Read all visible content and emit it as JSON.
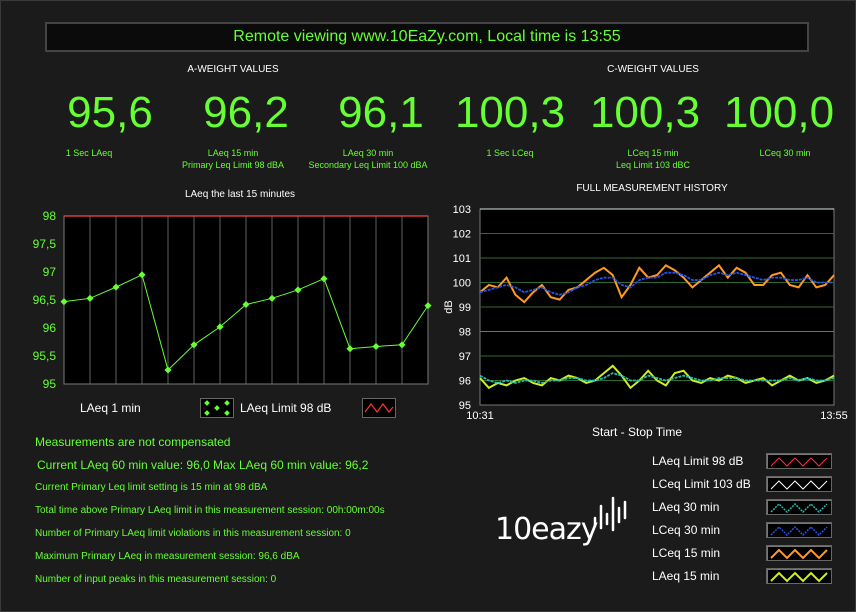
{
  "banner": "Remote viewing www.10EaZy.com, Local time is 13:55",
  "a_header": "A-WEIGHT VALUES",
  "c_header": "C-WEIGHT VALUES",
  "readouts": [
    {
      "value": "95,6",
      "cap1": "1 Sec LAeq",
      "cap2": ""
    },
    {
      "value": "96,2",
      "cap1": "LAeq 15 min",
      "cap2": "Primary Leq Limit 98 dBA"
    },
    {
      "value": "96,1",
      "cap1": "LAeq 30 min",
      "cap2": "Secondary Leq Limit 100 dBA"
    },
    {
      "value": "100,3",
      "cap1": "1 Sec LCeq",
      "cap2": ""
    },
    {
      "value": "100,3",
      "cap1": "LCeq 15 min",
      "cap2": "Leq Limit 103 dBC"
    },
    {
      "value": "100,0",
      "cap1": "LCeq 30 min",
      "cap2": ""
    }
  ],
  "left_chart_title": "LAeq the last 15 minutes",
  "right_chart_title": "FULL MEASUREMENT HISTORY",
  "left_legend": {
    "series_label": "LAeq 1 min",
    "limit_label": "LAeq Limit 98 dB"
  },
  "right_axis": {
    "ylabel": "dB",
    "x_start": "10:31",
    "x_end": "13:55",
    "xlabel": "Start - Stop Time"
  },
  "info": {
    "compensation": "Measurements are not compensated",
    "current_60": "Current LAeq 60 min value: 96,0",
    "max_60": "Max LAeq 60 min value: 96,2",
    "limit_setting": "Current Primary Leq limit setting is 15 min at 98 dBA",
    "time_above": "Total time above Primary LAeq limit in this measurement session: 00h:00m:00s",
    "violations": "Number of Primary LAeq limit violations in this measurement session: 0",
    "max_primary": "Maximum Primary LAeq in measurement session: 96,6 dBA",
    "peaks": "Number of input peaks in this measurement session: 0"
  },
  "logo": "10eazy",
  "right_legend": [
    {
      "label": "LAeq Limit 98 dB",
      "color": "#ff3333"
    },
    {
      "label": "LCeq Limit 103 dB",
      "color": "#ffffff"
    },
    {
      "label": "LAeq 30 min",
      "color": "#22bbaa"
    },
    {
      "label": "LCeq 30 min",
      "color": "#2255ee"
    },
    {
      "label": "LCeq 15 min",
      "color": "#ff9922"
    },
    {
      "label": "LAeq 15 min",
      "color": "#ccee22"
    }
  ],
  "chart_data": [
    {
      "type": "line",
      "title": "LAeq the last 15 minutes",
      "ylim": [
        95,
        98
      ],
      "yticks": [
        "98",
        "97,5",
        "97",
        "96,5",
        "96",
        "95,5",
        "95"
      ],
      "series": [
        {
          "name": "LAeq 1 min",
          "values": [
            96.47,
            96.53,
            96.73,
            96.95,
            95.25,
            95.7,
            96.02,
            96.42,
            96.53,
            96.68,
            96.88,
            95.63,
            95.67,
            95.7,
            96.4
          ]
        },
        {
          "name": "LAeq Limit 98 dB",
          "values": [
            98,
            98
          ]
        }
      ]
    },
    {
      "type": "line",
      "title": "FULL MEASUREMENT HISTORY",
      "ylabel": "dB",
      "xlabel": "Start - Stop Time",
      "x_range": [
        "10:31",
        "13:55"
      ],
      "ylim": [
        95,
        103
      ],
      "yticks": [
        "103",
        "102",
        "101",
        "100",
        "99",
        "98",
        "97",
        "96",
        "95"
      ],
      "limits": [
        {
          "name": "LAeq Limit 98 dB",
          "value": 98
        },
        {
          "name": "LCeq Limit 103 dB",
          "value": 103
        }
      ],
      "series": [
        {
          "name": "LCeq 15 min",
          "values": [
            99.6,
            99.9,
            99.8,
            100.2,
            99.5,
            99.2,
            99.6,
            99.9,
            99.4,
            99.3,
            99.7,
            99.8,
            100.1,
            100.4,
            100.6,
            100.3,
            99.4,
            99.9,
            100.6,
            100.2,
            100.3,
            100.7,
            100.5,
            100.2,
            99.8,
            100.1,
            100.4,
            100.7,
            100.2,
            100.6,
            100.4,
            99.9,
            99.9,
            100.3,
            100.4,
            99.9,
            99.8,
            100.3,
            99.8,
            99.9,
            100.3
          ]
        },
        {
          "name": "LCeq 30 min",
          "values": [
            99.6,
            99.7,
            99.8,
            99.9,
            99.8,
            99.6,
            99.7,
            99.8,
            99.6,
            99.5,
            99.6,
            99.8,
            99.9,
            100.1,
            100.2,
            100.2,
            99.9,
            99.8,
            100.1,
            100.2,
            100.2,
            100.4,
            100.4,
            100.3,
            100.1,
            100.1,
            100.3,
            100.4,
            100.3,
            100.4,
            100.3,
            100.2,
            100.1,
            100.2,
            100.2,
            100.1,
            100.1,
            100.2,
            100.0,
            100.0,
            100.0
          ]
        },
        {
          "name": "LAeq 15 min",
          "values": [
            96.1,
            95.7,
            95.9,
            95.8,
            96.0,
            96.1,
            95.9,
            95.8,
            96.1,
            96.0,
            96.2,
            96.1,
            95.9,
            96.0,
            96.3,
            96.6,
            96.2,
            95.7,
            96.0,
            96.4,
            96.0,
            95.8,
            96.3,
            96.4,
            96.0,
            95.9,
            96.1,
            96.0,
            96.2,
            96.1,
            95.9,
            96.0,
            96.1,
            95.8,
            96.0,
            96.2,
            96.0,
            96.1,
            95.9,
            96.0,
            96.2
          ]
        },
        {
          "name": "LAeq 30 min",
          "values": [
            96.2,
            96.0,
            95.9,
            96.0,
            95.9,
            96.0,
            96.0,
            95.9,
            96.0,
            96.0,
            96.1,
            96.1,
            96.0,
            96.0,
            96.1,
            96.3,
            96.2,
            96.0,
            96.0,
            96.2,
            96.1,
            96.0,
            96.1,
            96.2,
            96.1,
            96.0,
            96.0,
            96.1,
            96.1,
            96.1,
            96.0,
            96.0,
            96.0,
            96.0,
            96.0,
            96.1,
            96.0,
            96.1,
            96.0,
            96.0,
            96.1
          ]
        }
      ]
    }
  ]
}
